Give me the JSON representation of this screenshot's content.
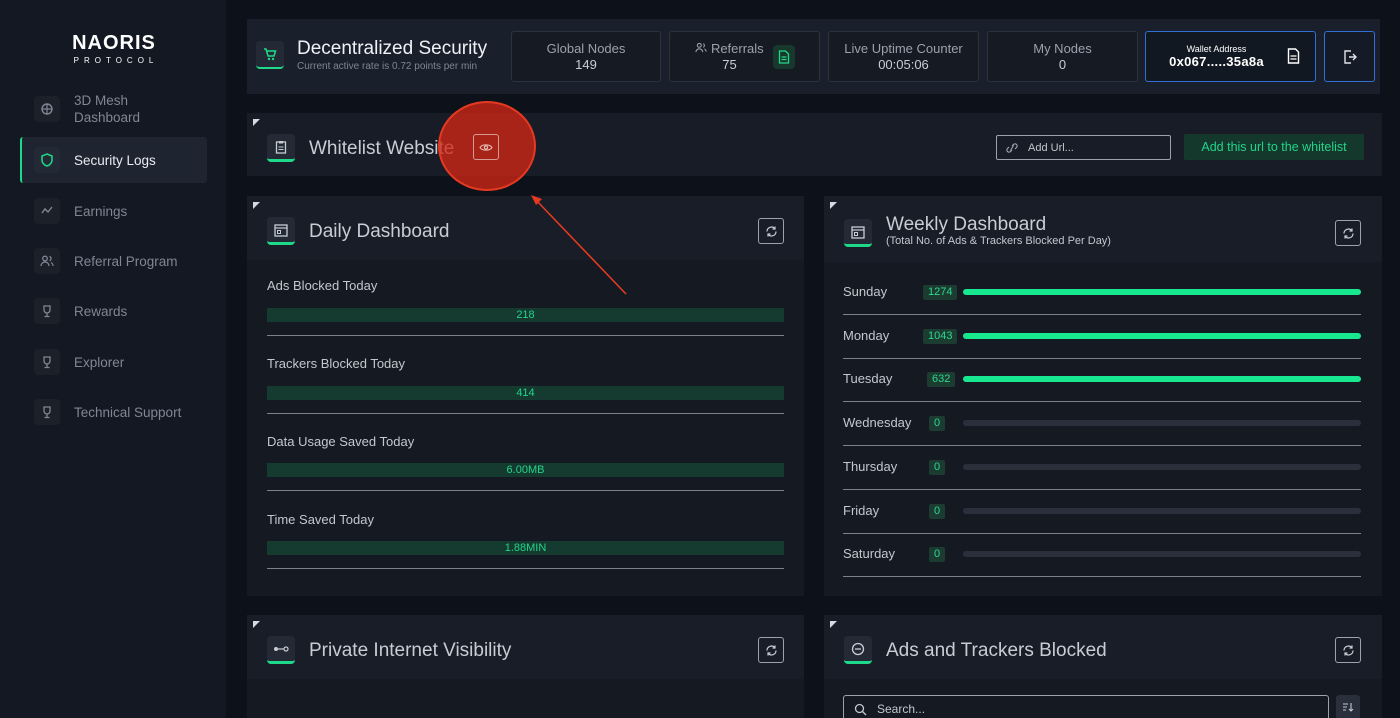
{
  "brand": {
    "name": "NAORIS",
    "subtitle": "PROTOCOL"
  },
  "sidebar": {
    "items": [
      {
        "label": "3D Mesh Dashboard",
        "icon": "mesh-icon",
        "active": false
      },
      {
        "label": "Security Logs",
        "icon": "shield-icon",
        "active": true
      },
      {
        "label": "Earnings",
        "icon": "earnings-icon",
        "active": false
      },
      {
        "label": "Referral Program",
        "icon": "users-icon",
        "active": false
      },
      {
        "label": "Rewards",
        "icon": "trophy-icon",
        "active": false
      },
      {
        "label": "Explorer",
        "icon": "explorer-icon",
        "active": false
      },
      {
        "label": "Technical Support",
        "icon": "support-icon",
        "active": false
      }
    ]
  },
  "header": {
    "title": "Decentralized Security",
    "subtitle": "Current active rate is 0.72 points per min",
    "stats": [
      {
        "label": "Global Nodes",
        "value": "149"
      },
      {
        "label": "Referrals",
        "value": "75"
      },
      {
        "label": "Live Uptime Counter",
        "value": "00:05:06"
      },
      {
        "label": "My Nodes",
        "value": "0"
      }
    ],
    "wallet": {
      "label": "Wallet Address",
      "value": "0x067.....35a8a"
    }
  },
  "whitelist": {
    "title": "Whitelist Website",
    "input_placeholder": "Add Url...",
    "button_label": "Add this url to the whitelist"
  },
  "daily": {
    "title": "Daily Dashboard",
    "metrics": [
      {
        "label": "Ads Blocked Today",
        "value": "218"
      },
      {
        "label": "Trackers Blocked Today",
        "value": "414"
      },
      {
        "label": "Data Usage Saved Today",
        "value": "6.00MB"
      },
      {
        "label": "Time Saved Today",
        "value": "1.88MIN"
      }
    ]
  },
  "weekly": {
    "title": "Weekly Dashboard",
    "subtitle": "(Total No. of Ads & Trackers Blocked Per Day)",
    "days": [
      {
        "day": "Sunday",
        "count": "1274",
        "fill": 1.0
      },
      {
        "day": "Monday",
        "count": "1043",
        "fill": 1.0
      },
      {
        "day": "Tuesday",
        "count": "632",
        "fill": 1.0
      },
      {
        "day": "Wednesday",
        "count": "0",
        "fill": 0
      },
      {
        "day": "Thursday",
        "count": "0",
        "fill": 0
      },
      {
        "day": "Friday",
        "count": "0",
        "fill": 0
      },
      {
        "day": "Saturday",
        "count": "0",
        "fill": 0
      }
    ]
  },
  "visibility": {
    "title": "Private Internet Visibility"
  },
  "blocked": {
    "title": "Ads and Trackers Blocked",
    "search_placeholder": "Search..."
  },
  "colors": {
    "accent": "#1ed98a",
    "wallet_border": "#2f6fd6",
    "annotation": "#d12716"
  }
}
